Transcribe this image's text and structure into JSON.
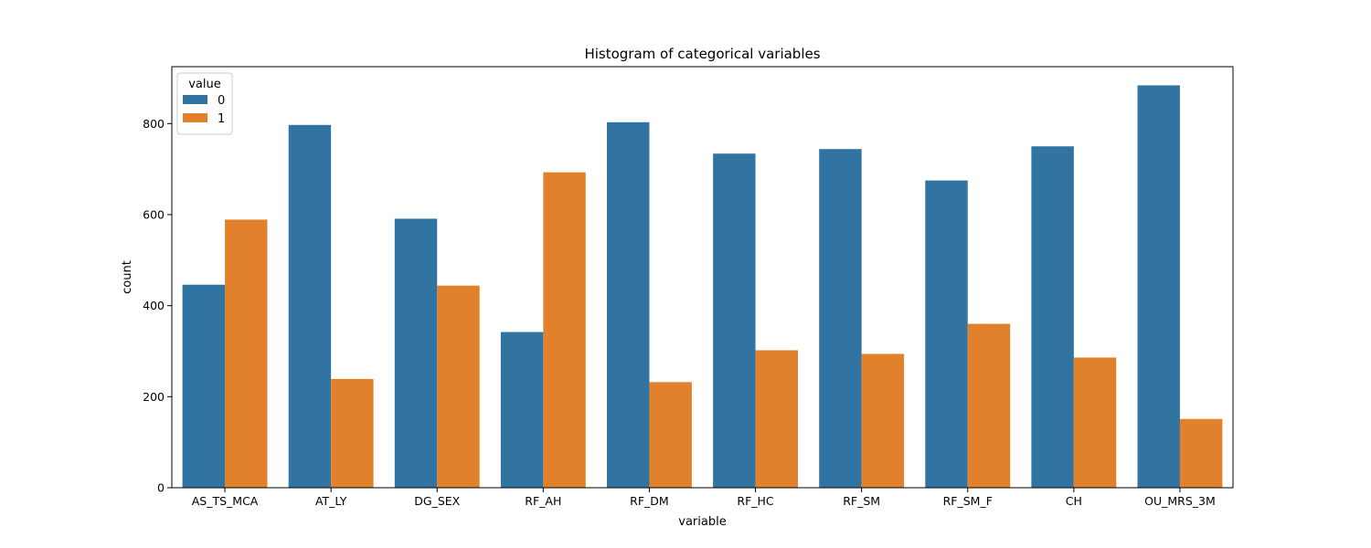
{
  "chart_data": {
    "type": "bar",
    "title": "Histogram of categorical variables",
    "xlabel": "variable",
    "ylabel": "count",
    "ylim": [
      0,
      925
    ],
    "yticks": [
      0,
      200,
      400,
      600,
      800
    ],
    "grid": false,
    "legend": {
      "title": "value",
      "placement": "top-left"
    },
    "categories": [
      "AS_TS_MCA",
      "AT_LY",
      "DG_SEX",
      "RF_AH",
      "RF_DM",
      "RF_HC",
      "RF_SM",
      "RF_SM_F",
      "CH",
      "OU_MRS_3M"
    ],
    "series": [
      {
        "name": "0",
        "color": "#3274a1",
        "values": [
          446,
          797,
          591,
          342,
          803,
          734,
          744,
          675,
          750,
          884
        ]
      },
      {
        "name": "1",
        "color": "#e1812c",
        "values": [
          589,
          239,
          444,
          693,
          232,
          302,
          294,
          360,
          286,
          151
        ]
      }
    ]
  }
}
